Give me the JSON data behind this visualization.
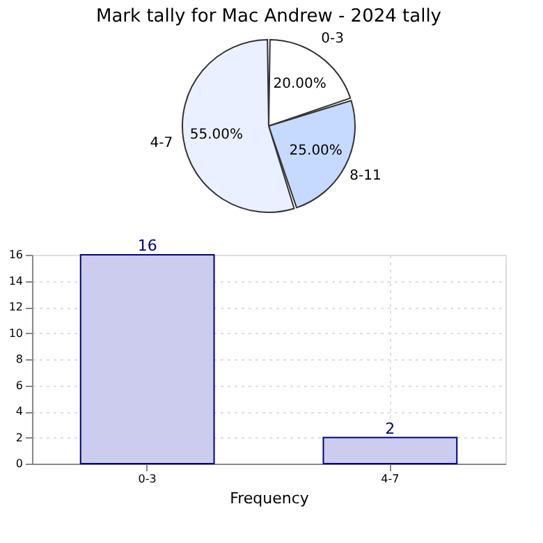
{
  "chart_data": [
    {
      "type": "pie",
      "title": "Mark tally for Mac Andrew - 2024 tally",
      "categories": [
        "0-3",
        "8-11",
        "4-7"
      ],
      "values": [
        20,
        25,
        55
      ],
      "colors": [
        "#ffffff",
        "#c6d9ff",
        "#eaf0ff"
      ],
      "value_labels": [
        "20.00%",
        "25.00%",
        "55.00%"
      ],
      "legend": false
    },
    {
      "type": "bar",
      "categories": [
        "0-3",
        "4-7"
      ],
      "values": [
        16,
        2
      ],
      "color": "#ccccee",
      "xlabel": "Frequency",
      "ylim": [
        0,
        16
      ],
      "yticks": [
        0,
        2,
        4,
        6,
        8,
        10,
        12,
        14,
        16
      ],
      "grid": true,
      "data_labels": true
    }
  ]
}
